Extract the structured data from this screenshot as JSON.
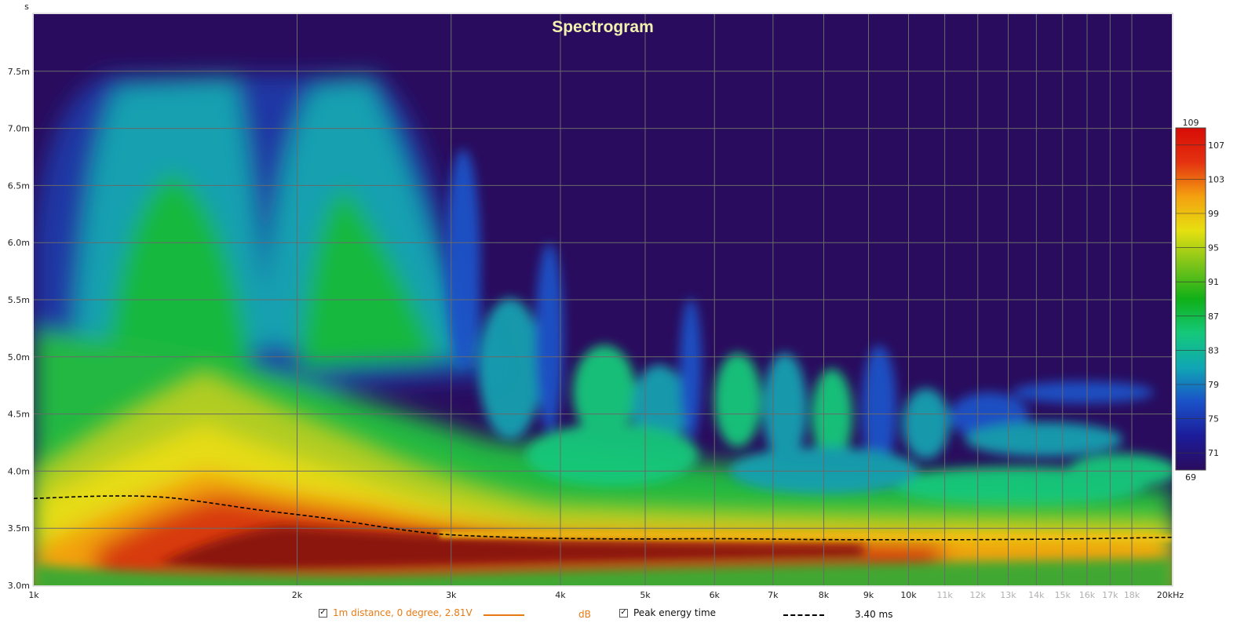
{
  "chart_data": {
    "type": "heatmap",
    "title": "Spectrogram",
    "y_unit": "s",
    "x_unit": "kHz",
    "x_scale": "log",
    "x_range_hz": [
      1000,
      20000
    ],
    "y_range_ms": [
      3.0,
      8.0
    ],
    "x_ticks": [
      {
        "hz": 1000,
        "label": "1k",
        "dim": false
      },
      {
        "hz": 2000,
        "label": "2k",
        "dim": false
      },
      {
        "hz": 3000,
        "label": "3k",
        "dim": false
      },
      {
        "hz": 4000,
        "label": "4k",
        "dim": false
      },
      {
        "hz": 5000,
        "label": "5k",
        "dim": false
      },
      {
        "hz": 6000,
        "label": "6k",
        "dim": false
      },
      {
        "hz": 7000,
        "label": "7k",
        "dim": false
      },
      {
        "hz": 8000,
        "label": "8k",
        "dim": false
      },
      {
        "hz": 9000,
        "label": "9k",
        "dim": false
      },
      {
        "hz": 10000,
        "label": "10k",
        "dim": false
      },
      {
        "hz": 11000,
        "label": "11k",
        "dim": true
      },
      {
        "hz": 12000,
        "label": "12k",
        "dim": true
      },
      {
        "hz": 13000,
        "label": "13k",
        "dim": true
      },
      {
        "hz": 14000,
        "label": "14k",
        "dim": true
      },
      {
        "hz": 15000,
        "label": "15k",
        "dim": true
      },
      {
        "hz": 16000,
        "label": "16k",
        "dim": true
      },
      {
        "hz": 17000,
        "label": "17k",
        "dim": true
      },
      {
        "hz": 18000,
        "label": "18k",
        "dim": true
      },
      {
        "hz": 20000,
        "label": "20kHz",
        "dim": false
      }
    ],
    "y_ticks": [
      {
        "ms": 3.0,
        "label": "3.0m"
      },
      {
        "ms": 3.5,
        "label": "3.5m"
      },
      {
        "ms": 4.0,
        "label": "4.0m"
      },
      {
        "ms": 4.5,
        "label": "4.5m"
      },
      {
        "ms": 5.0,
        "label": "5.0m"
      },
      {
        "ms": 5.5,
        "label": "5.5m"
      },
      {
        "ms": 6.0,
        "label": "6.0m"
      },
      {
        "ms": 6.5,
        "label": "6.5m"
      },
      {
        "ms": 7.0,
        "label": "7.0m"
      },
      {
        "ms": 7.5,
        "label": "7.5m"
      }
    ],
    "colorbar": {
      "unit": "dB",
      "min": 69,
      "max": 109,
      "tick_values": [
        71,
        75,
        79,
        83,
        87,
        91,
        95,
        99,
        103,
        107
      ],
      "stops": [
        "#2a0c5e",
        "#1c1c9a",
        "#1a52c8",
        "#10a6b4",
        "#14c87a",
        "#10b018",
        "#7cc41a",
        "#e6e010",
        "#f4a010",
        "#e43210",
        "#d80c06"
      ]
    },
    "peak_energy_time_curve": {
      "name": "Peak energy time",
      "points_hz_ms": [
        [
          1000,
          3.76
        ],
        [
          1200,
          3.785
        ],
        [
          1400,
          3.78
        ],
        [
          1600,
          3.72
        ],
        [
          1800,
          3.66
        ],
        [
          2000,
          3.62
        ],
        [
          2200,
          3.58
        ],
        [
          2500,
          3.51
        ],
        [
          2800,
          3.46
        ],
        [
          3000,
          3.44
        ],
        [
          3500,
          3.42
        ],
        [
          4000,
          3.41
        ],
        [
          5000,
          3.405
        ],
        [
          6000,
          3.41
        ],
        [
          7000,
          3.405
        ],
        [
          8000,
          3.4
        ],
        [
          10000,
          3.4
        ],
        [
          12000,
          3.4
        ],
        [
          15000,
          3.405
        ],
        [
          18000,
          3.415
        ],
        [
          20000,
          3.42
        ]
      ],
      "color": "#000000"
    }
  },
  "legend": {
    "series": {
      "checked_mark": "✓",
      "label": "1m distance, 0 degree, 2.81V",
      "color": "#e87a14",
      "unit": "dB"
    },
    "peak": {
      "checked_mark": "✓",
      "label": "Peak energy time",
      "value": "3.40 ms"
    }
  },
  "colors": {
    "background_field": "#2a0c5e",
    "grid": "#6a6a6a",
    "title": "#f2f2b0"
  }
}
